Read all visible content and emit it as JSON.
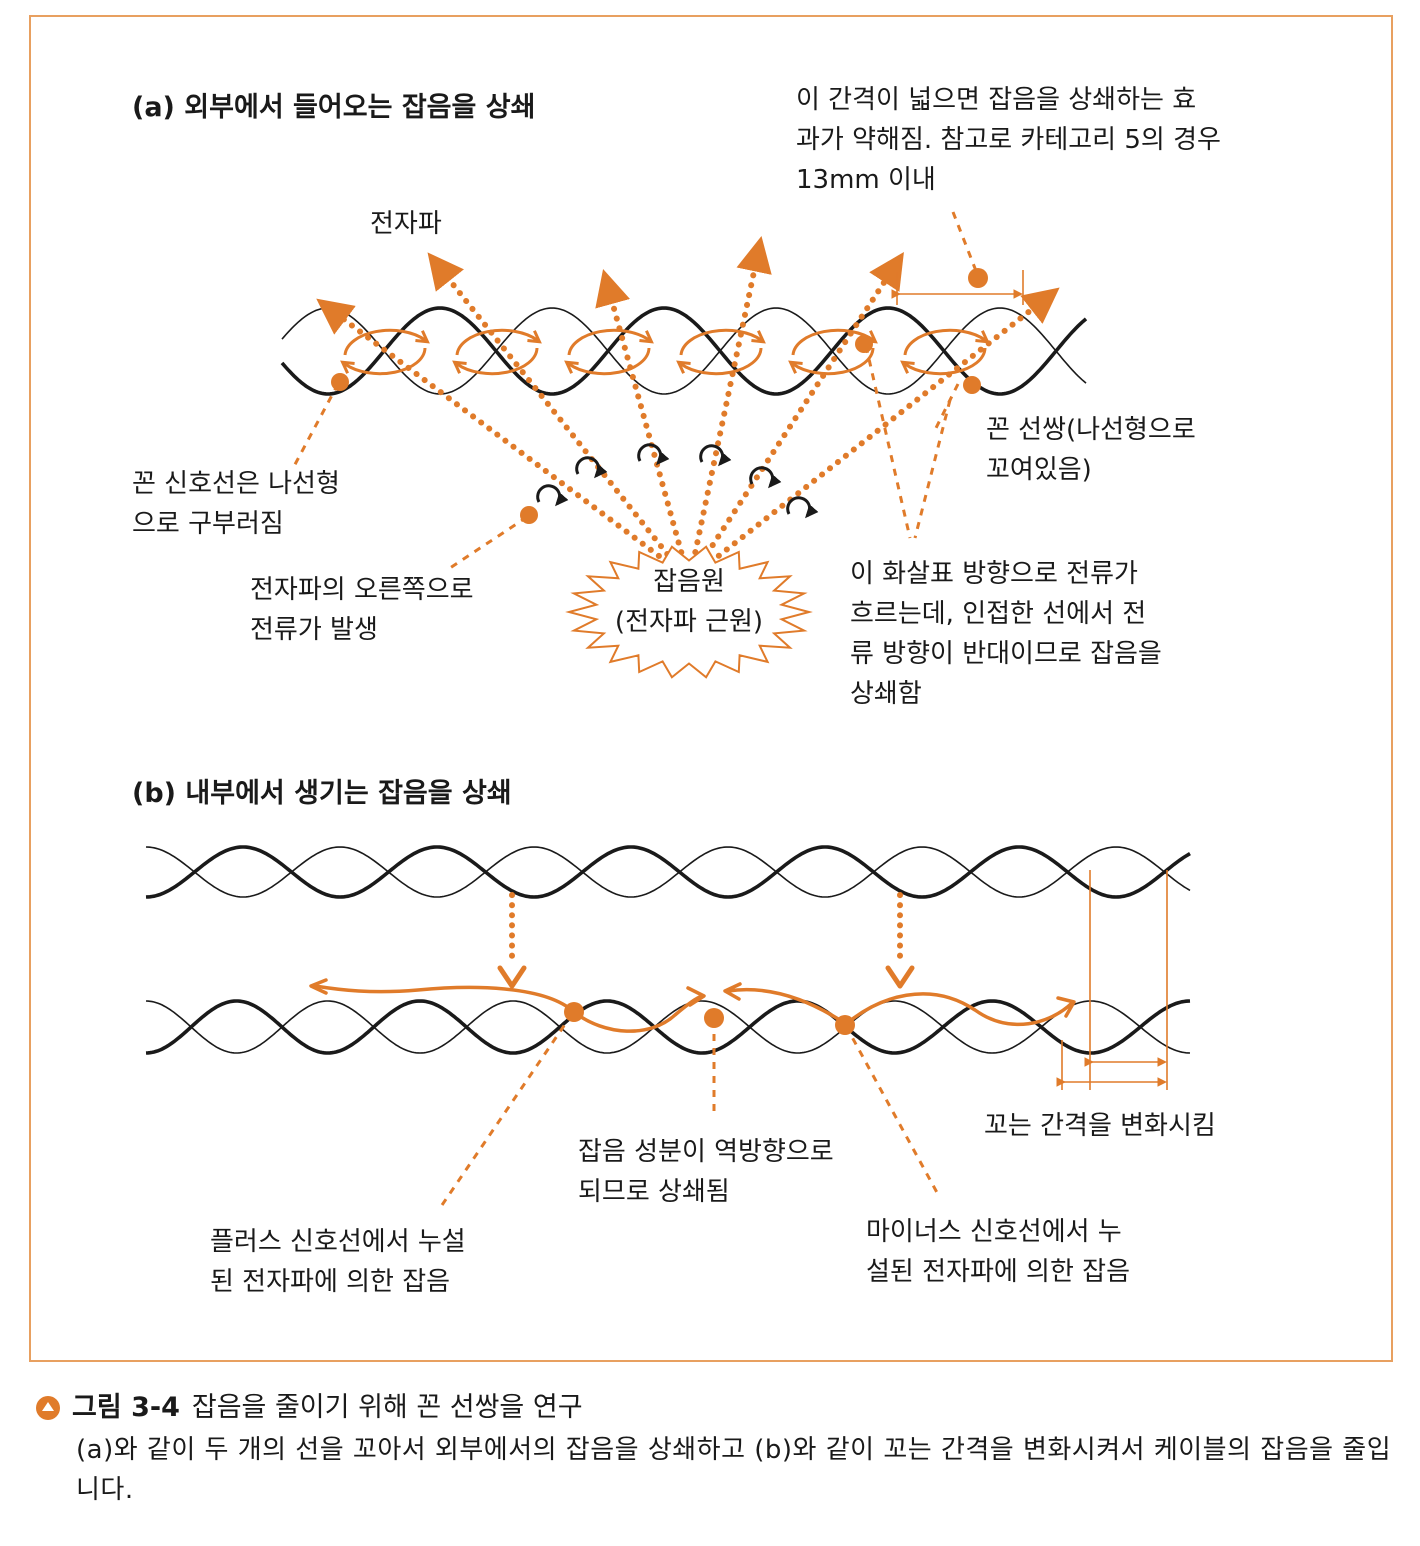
{
  "panel_a": {
    "title": "(a) 외부에서 들어오는 잡음을 상쇄",
    "label_em_wave": "전자파",
    "label_gap": [
      "이 간격이 넓으면 잡음을 상쇄하는 효",
      "과가 약해짐. 참고로 카테고리 5의 경우",
      "13mm 이내"
    ],
    "label_twisted_pair": [
      "꼰 선쌍(나선형으로",
      "꼬여있음)"
    ],
    "label_signal_line": [
      "꼰 신호선은 나선형",
      "으로 구부러짐"
    ],
    "label_right_current": [
      "전자파의 오른쪽으로",
      "전류가 발생"
    ],
    "label_noise_source": [
      "잡음원",
      "(전자파 근원)"
    ],
    "label_arrow_current": [
      "이 화살표 방향으로 전류가",
      "흐르는데, 인접한 선에서 전",
      "류 방향이 반대이므로 잡음을",
      "상쇄함"
    ]
  },
  "panel_b": {
    "title": "(b) 내부에서 생기는 잡음을 상쇄",
    "label_vary_pitch": "꼬는 간격을 변화시킴",
    "label_reverse": [
      "잡음 성분이 역방향으로",
      "되므로 상쇄됨"
    ],
    "label_plus": [
      "플러스 신호선에서 누설",
      "된 전자파에 의한 잡음"
    ],
    "label_minus": [
      "마이너스 신호선에서 누",
      "설된 전자파에 의한 잡음"
    ]
  },
  "caption": {
    "label": "그림 3-4",
    "title": "잡음을 줄이기 위해 꼰 선쌍을 연구",
    "body": "(a)와 같이 두 개의 선을 꼬아서 외부에서의 잡음을 상쇄하고 (b)와 같이 꼬는 간격을 변화시켜서 케이블의 잡음을 줄입니다."
  },
  "colors": {
    "accent": "#e07b2a",
    "frame": "#e8a060",
    "wire": "#1a1a1a"
  }
}
